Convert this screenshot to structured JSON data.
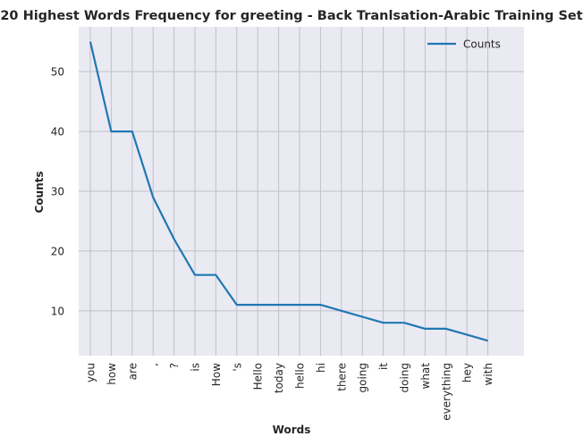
{
  "chart_data": {
    "type": "line",
    "title": "20 Highest Words Frequency for greeting - Back Tranlsation-Arabic Training Set",
    "xlabel": "Words",
    "ylabel": "Counts",
    "categories": [
      "you",
      "how",
      "are",
      ",",
      "?",
      "is",
      "How",
      "'s",
      "Hello",
      "today",
      "hello",
      "hi",
      "there",
      "going",
      "it",
      "doing",
      "what",
      "everything",
      "hey",
      "with"
    ],
    "series": [
      {
        "name": "Counts",
        "values": [
          55,
          40,
          40,
          29,
          22,
          16,
          16,
          11,
          11,
          11,
          11,
          11,
          10,
          9,
          8,
          8,
          7,
          7,
          6,
          5
        ]
      }
    ],
    "yticks": [
      10,
      20,
      30,
      40,
      50
    ],
    "ylim": [
      2.5,
      57.5
    ],
    "grid": true,
    "legend_position": "top-right",
    "colors": {
      "line": "#1f77b4",
      "background": "#eaeaf2",
      "grid": "#c0c0c8"
    }
  }
}
